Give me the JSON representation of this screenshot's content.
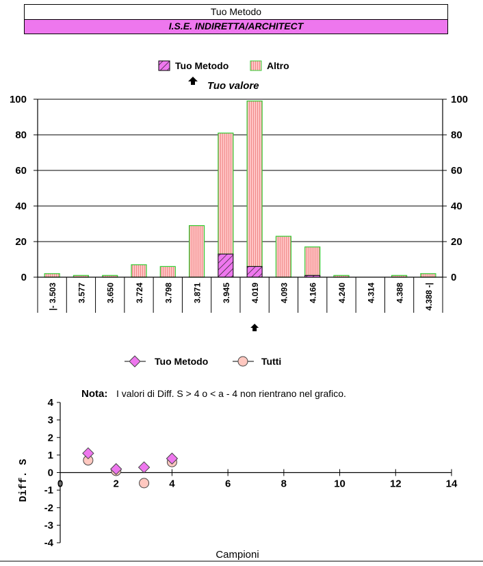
{
  "header": {
    "title": "Tuo Metodo",
    "subtitle": "I.S.E. INDIRETTA/ARCHITECT",
    "subtitle_bg": "#ee77ee"
  },
  "chart_data": [
    {
      "type": "bar",
      "stacked": true,
      "categories": [
        "|- 3.503",
        "3.577",
        "3.650",
        "3.724",
        "3.798",
        "3.871",
        "3.945",
        "4.019",
        "4.093",
        "4.166",
        "4.240",
        "4.314",
        "4.388",
        "4.388 -|"
      ],
      "series": [
        {
          "name": "Tuo Metodo",
          "values": [
            0,
            0,
            0,
            0,
            0,
            0,
            13,
            6,
            0,
            1,
            0,
            0,
            0,
            0
          ],
          "color": "#ee77ee",
          "pattern": "diagonal-hatch"
        },
        {
          "name": "Altro",
          "values": [
            2,
            1,
            1,
            7,
            6,
            29,
            68,
            93,
            23,
            16,
            1,
            0,
            1,
            2
          ],
          "color": "#ffb6b6",
          "pattern": "vertical-lines",
          "border": "#33cc33"
        }
      ],
      "ylim": [
        0,
        100
      ],
      "yticks": [
        0,
        20,
        40,
        60,
        80,
        100
      ],
      "grid": true,
      "legend_placement": "top",
      "marker": {
        "label": "Tuo valore",
        "category": "4.019",
        "icon": "up-arrow-icon"
      }
    },
    {
      "type": "scatter",
      "series": [
        {
          "name": "Tuo Metodo",
          "marker": "diamond",
          "color": "#ee77ee",
          "points": [
            [
              1,
              1.1
            ],
            [
              2,
              0.2
            ],
            [
              3,
              0.3
            ],
            [
              4,
              0.8
            ]
          ]
        },
        {
          "name": "Tutti",
          "marker": "circle",
          "color": "#ffc8c0",
          "points": [
            [
              1,
              0.7
            ],
            [
              2,
              0.1
            ],
            [
              3,
              -0.6
            ],
            [
              4,
              0.6
            ]
          ]
        }
      ],
      "xlim": [
        0,
        14
      ],
      "xticks": [
        0,
        2,
        4,
        6,
        8,
        10,
        12,
        14
      ],
      "ylim": [
        -4,
        4
      ],
      "yticks": [
        4,
        3,
        2,
        1,
        0,
        -1,
        -2,
        -3,
        -4
      ],
      "xlabel": "Campioni",
      "ylabel": "Diff. S",
      "legend_placement": "top",
      "note_label": "Nota:",
      "note": "I valori di Diff. S > 4 o < a - 4 non rientrano nel grafico."
    }
  ]
}
